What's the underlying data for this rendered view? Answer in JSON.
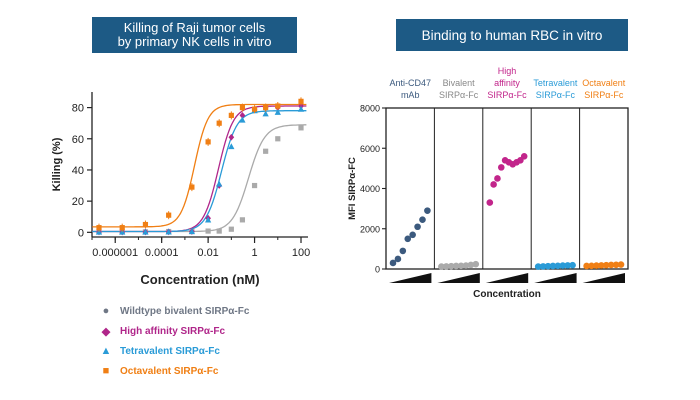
{
  "colors": {
    "banner": "#1d5a85",
    "wildtype": "#aaaaaa",
    "high_affinity": "#b0268a",
    "tetravalent": "#2a9bd7",
    "octavalent": "#f07f14",
    "antiCD47": "#3c5a7e",
    "bivalent_rbc": "#aaaaaa"
  },
  "left_chart": {
    "title_line1": "Killing of Raji tumor cells",
    "title_line2": "by primary NK cells in vitro"
  },
  "right_chart": {
    "title": "Binding to human RBC in vitro"
  },
  "legend": [
    {
      "marker": "circle",
      "label": "Wildtype bivalent SIRPα-Fc",
      "color": "#6f7785"
    },
    {
      "marker": "diamond",
      "label": "High affinity SIRPα-Fc",
      "color": "#b0268a"
    },
    {
      "marker": "triangle",
      "label": "Tetravalent SIRPα-Fc",
      "color": "#2a9bd7"
    },
    {
      "marker": "square",
      "label": "Octavalent SIRPα-Fc",
      "color": "#f07f14"
    }
  ],
  "chart_data": [
    {
      "type": "scatter",
      "title": "Killing of Raji tumor cells by primary NK cells in vitro",
      "xlabel": "Concentration (nM)",
      "ylabel": "Killing (%)",
      "xscale": "log",
      "xticks": [
        "0.000001",
        "0.0001",
        "0.01",
        "1",
        "100"
      ],
      "yticks": [
        "0",
        "20",
        "40",
        "60",
        "80"
      ],
      "xlim": [
        1e-07,
        200
      ],
      "ylim": [
        -3,
        90
      ],
      "curves": [
        {
          "series": "Wildtype bivalent SIRPα-Fc",
          "bottom": 0.5,
          "top": 69,
          "ec50": 0.55,
          "hill": 1.25,
          "color": "#aaaaaa"
        },
        {
          "series": "High affinity SIRPα-Fc",
          "bottom": 0.5,
          "top": 81,
          "ec50": 0.028,
          "hill": 1.35,
          "color": "#b0268a"
        },
        {
          "series": "Tetravalent SIRPα-Fc",
          "bottom": 0.5,
          "top": 78,
          "ec50": 0.038,
          "hill": 1.3,
          "color": "#2a9bd7"
        },
        {
          "series": "Octavalent SIRPα-Fc",
          "bottom": 3.5,
          "top": 82,
          "ec50": 0.0026,
          "hill": 1.5,
          "color": "#f07f14"
        }
      ],
      "series": [
        {
          "name": "Wildtype bivalent SIRPα-Fc",
          "color": "#aaaaaa",
          "marker": "square",
          "points": [
            [
              2e-07,
              0.3
            ],
            [
              2e-06,
              0.3
            ],
            [
              2e-05,
              0.3
            ],
            [
              0.0002,
              0.5
            ],
            [
              0.002,
              0.5
            ],
            [
              0.01,
              0.8
            ],
            [
              0.03,
              0.8
            ],
            [
              0.1,
              2
            ],
            [
              0.3,
              8
            ],
            [
              1,
              30
            ],
            [
              3,
              52
            ],
            [
              10,
              60
            ],
            [
              100,
              67
            ]
          ]
        },
        {
          "name": "High affinity SIRPα-Fc",
          "color": "#b0268a",
          "marker": "diamond",
          "points": [
            [
              2e-07,
              0.2
            ],
            [
              2e-06,
              0.2
            ],
            [
              2e-05,
              0.2
            ],
            [
              0.0002,
              0.3
            ],
            [
              0.002,
              0.5
            ],
            [
              0.01,
              9
            ],
            [
              0.03,
              30
            ],
            [
              0.1,
              61
            ],
            [
              0.3,
              75
            ],
            [
              1,
              79
            ],
            [
              3,
              80
            ],
            [
              10,
              80
            ],
            [
              100,
              81
            ]
          ]
        },
        {
          "name": "Tetravalent SIRPα-Fc",
          "color": "#2a9bd7",
          "marker": "triangle",
          "points": [
            [
              2e-07,
              0.2
            ],
            [
              2e-06,
              0.2
            ],
            [
              2e-05,
              0.2
            ],
            [
              0.0002,
              0.3
            ],
            [
              0.002,
              0.5
            ],
            [
              0.01,
              8
            ],
            [
              0.03,
              31
            ],
            [
              0.1,
              55
            ],
            [
              0.3,
              72
            ],
            [
              1,
              78
            ],
            [
              3,
              76
            ],
            [
              10,
              77
            ],
            [
              100,
              79
            ]
          ]
        },
        {
          "name": "Octavalent SIRPα-Fc",
          "color": "#f07f14",
          "marker": "square",
          "points": [
            [
              2e-07,
              3
            ],
            [
              2e-06,
              3
            ],
            [
              2e-05,
              5
            ],
            [
              0.0002,
              11
            ],
            [
              0.002,
              29
            ],
            [
              0.01,
              58
            ],
            [
              0.03,
              70
            ],
            [
              0.1,
              75
            ],
            [
              0.3,
              80
            ],
            [
              1,
              79
            ],
            [
              3,
              80
            ],
            [
              10,
              81
            ],
            [
              100,
              84
            ]
          ]
        }
      ]
    },
    {
      "type": "scatter",
      "title": "Binding to human RBC in vitro",
      "xlabel": "Concentration",
      "ylabel": "MFI SIRPα-FC",
      "ylim": [
        0,
        8000
      ],
      "yticks": [
        "0",
        "2000",
        "4000",
        "6000",
        "8000"
      ],
      "groups": [
        {
          "label_lines": [
            "Anti-CD47",
            "mAb"
          ],
          "color": "#3c5a7e",
          "label_color": "#3c5a7e",
          "values": [
            300,
            500,
            900,
            1500,
            1700,
            2100,
            2450,
            2900
          ]
        },
        {
          "label_lines": [
            "Bivalent",
            "SIRPα-Fc"
          ],
          "color": "#aaaaaa",
          "label_color": "#888888",
          "values": [
            120,
            130,
            140,
            150,
            160,
            170,
            200,
            240
          ]
        },
        {
          "label_lines": [
            "High",
            "affinity",
            "SIRPα-Fc"
          ],
          "color": "#c2258b",
          "label_color": "#c2258b",
          "values": [
            3300,
            4200,
            4500,
            5050,
            5400,
            5300,
            5200,
            5300,
            5400,
            5600
          ]
        },
        {
          "label_lines": [
            "Tetravalent",
            "SIRPα-Fc"
          ],
          "color": "#2a9bd7",
          "label_color": "#2a9bd7",
          "values": [
            120,
            130,
            140,
            150,
            160,
            170,
            180,
            190
          ]
        },
        {
          "label_lines": [
            "Octavalent",
            "SIRPα-Fc"
          ],
          "color": "#f07f14",
          "label_color": "#f07f14",
          "values": [
            150,
            160,
            170,
            180,
            190,
            200,
            210,
            220
          ]
        }
      ]
    }
  ]
}
